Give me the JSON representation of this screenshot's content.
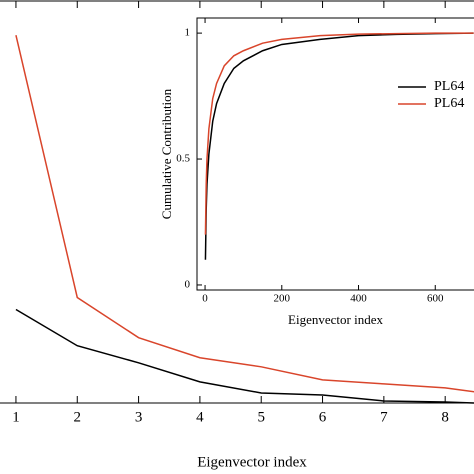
{
  "chart_data": [
    {
      "type": "line",
      "xlabel": "Eigenvector index",
      "x": [
        1,
        2,
        3,
        4,
        5,
        6,
        7,
        8,
        8.5
      ],
      "xlim": [
        0.74,
        8.47
      ],
      "xticks": [
        1,
        2,
        3,
        4,
        5,
        6,
        7,
        8
      ],
      "ylim": [
        0,
        400
      ],
      "series": [
        {
          "name": "PL64",
          "color": "#000000",
          "values": [
            93,
            57,
            40,
            21,
            10,
            8,
            2,
            1,
            0
          ]
        },
        {
          "name": "PL64",
          "color": "#d9452b",
          "values": [
            366,
            105,
            65,
            45,
            36,
            23,
            19,
            15,
            11
          ]
        }
      ]
    },
    {
      "type": "line",
      "xlabel": "Eigenvector index",
      "ylabel": "Cumulative Contribution",
      "x": [
        1,
        3,
        5,
        10,
        20,
        30,
        50,
        75,
        100,
        150,
        200,
        300,
        400,
        500,
        600,
        700
      ],
      "xlim": [
        -21,
        701
      ],
      "xticks": [
        0,
        200,
        400,
        600
      ],
      "ylim": [
        -0.02,
        1.06
      ],
      "yticks": [
        0,
        0.5,
        1
      ],
      "series": [
        {
          "name": "PL64",
          "color": "#000000",
          "values": [
            0.1,
            0.3,
            0.4,
            0.52,
            0.65,
            0.72,
            0.8,
            0.86,
            0.89,
            0.93,
            0.955,
            0.975,
            0.99,
            0.995,
            0.998,
            1.0
          ]
        },
        {
          "name": "PL64",
          "color": "#d9452b",
          "values": [
            0.2,
            0.4,
            0.5,
            0.62,
            0.74,
            0.8,
            0.87,
            0.91,
            0.93,
            0.96,
            0.975,
            0.99,
            0.996,
            0.998,
            1.0,
            1.0
          ]
        }
      ]
    }
  ]
}
